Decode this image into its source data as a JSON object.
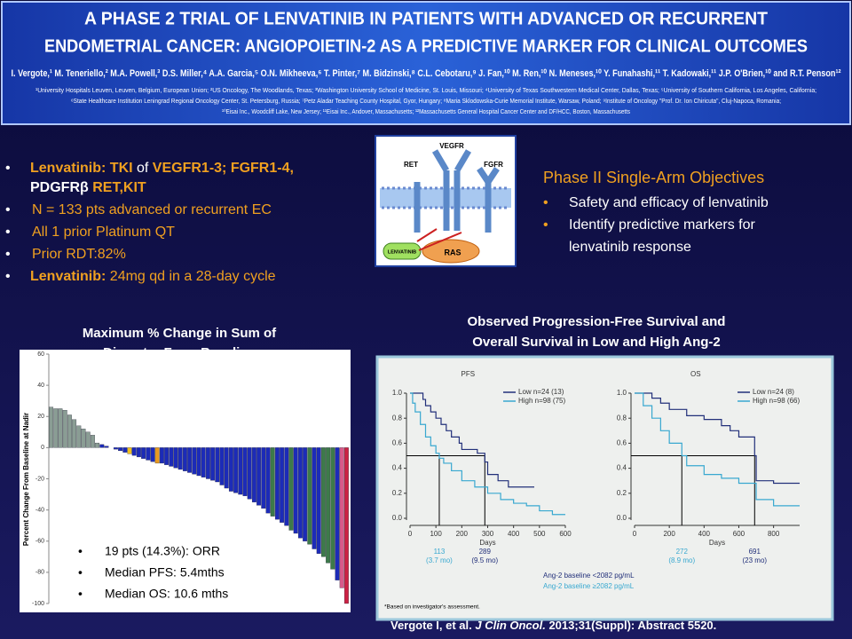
{
  "header": {
    "title": [
      "A PHASE 2 TRIAL OF LENVATINIB IN PATIENTS WITH ADVANCED OR RECURRENT",
      "ENDOMETRIAL CANCER: ANGIOPOIETIN-2 AS A PREDICTIVE MARKER FOR CLINICAL OUTCOMES"
    ],
    "authors": "I. Vergote,¹ M. Teneriello,² M.A. Powell,³ D.S. Miller,⁴ A.A. Garcia,⁵ O.N. Mikheeva,⁶ T. Pinter,⁷ M. Bidzinski,⁸ C.L. Cebotaru,⁹ J. Fan,¹⁰ M. Ren,¹⁰ N. Meneses,¹⁰ Y. Funahashi,¹¹ T. Kadowaki,¹¹ J.P. O'Brien,¹⁰ and R.T. Penson¹²",
    "affiliations": [
      "¹University Hospitals Leuven, Leuven, Belgium, European Union; ²US Oncology, The Woodlands, Texas; ³Washington University School of Medicine, St. Louis, Missouri; ⁴University of Texas Southwestern Medical Center, Dallas, Texas; ⁵University of Southern California, Los Angeles, California;",
      "⁶State Healthcare Institution Leningrad Regional Oncology Center, St. Petersburg, Russia; ⁷Petz Aladar Teaching County Hospital, Gyor, Hungary; ⁸Maria Sklodowska-Curie Memorial Institute, Warsaw, Poland; ⁹Institute of Oncology \"Prof. Dr. Ion Chiricuta\", Cluj-Napoca, Romania;",
      "¹⁰Eisai Inc., Woodcliff Lake, New Jersey; ¹¹Eisai Inc., Andover, Massachusetts; ¹²Massachusetts General Hospital Cancer Center and DF/HCC, Boston, Massachusetts"
    ]
  },
  "bullets": [
    [
      [
        {
          "text": "Lenvatinib:",
          "color": "#f0a020",
          "bold": true
        },
        {
          "text": " TKI",
          "color": "#f0a020",
          "bold": true
        },
        {
          "text": " of ",
          "color": "#ffffff",
          "bold": false
        },
        {
          "text": "VEGFR1-3; FGFR1-4,",
          "color": "#f0a020",
          "bold": true
        }
      ],
      [
        {
          "text": "PDGFRβ",
          "color": "#ffffff",
          "bold": true
        },
        {
          "text": " RET,KIT",
          "color": "#f0a020",
          "bold": true
        }
      ]
    ],
    [
      [
        {
          "text": "N = 133 pts advanced or recurrent EC",
          "color": "#f0a020",
          "bold": false
        }
      ]
    ],
    [
      [
        {
          "text": "All 1 prior Platinum QT",
          "color": "#f0a020",
          "bold": false
        }
      ]
    ],
    [
      [
        {
          "text": "Prior RDT:82%",
          "color": "#f0a020",
          "bold": false
        }
      ]
    ],
    [
      [
        {
          "text": "Lenvatinib:",
          "color": "#f0a020",
          "bold": true
        },
        {
          "text": " 24mg qd in a 28-day cycle",
          "color": "#f0a020",
          "bold": false
        }
      ]
    ]
  ],
  "diagram": {
    "labels": [
      "RET",
      "VEGFR",
      "FGFR",
      "LENVATINIB",
      "RAS"
    ]
  },
  "objectives": {
    "title": "Phase II Single-Arm Objectives",
    "items": [
      "Safety and efficacy of lenvatinib",
      "Identify predictive markers for",
      "lenvatinib response"
    ]
  },
  "chart_data": [
    {
      "type": "bar",
      "title": [
        "Maximum % Change in Sum of",
        "Diameter From Baseline"
      ],
      "y_label": "Percent Change From Baseline at Nadir",
      "ylim": [
        -100,
        60
      ],
      "yticks": [
        60,
        40,
        20,
        0,
        -20,
        -40,
        -60,
        -80,
        -100
      ],
      "values": [
        26,
        25,
        25,
        24,
        21,
        18,
        14,
        12,
        10,
        8,
        3,
        2,
        1,
        0,
        -1,
        -2,
        -3,
        -4,
        -5,
        -6,
        -7,
        -8,
        -9,
        -10,
        -10,
        -11,
        -12,
        -13,
        -14,
        -15,
        -16,
        -17,
        -18,
        -19,
        -20,
        -21,
        -22,
        -24,
        -26,
        -28,
        -29,
        -30,
        -31,
        -33,
        -35,
        -37,
        -39,
        -42,
        -44,
        -46,
        -48,
        -50,
        -53,
        -55,
        -58,
        -60,
        -62,
        -65,
        -68,
        -70,
        -74,
        -78,
        -85,
        -90,
        -100
      ],
      "colors": [
        "#8a9d94",
        "#8a9d94",
        "#8a9d94",
        "#8a9d94",
        "#8a9d94",
        "#8a9d94",
        "#8a9d94",
        "#8a9d94",
        "#8a9d94",
        "#8a9d94",
        "#8a9d94",
        "#1c2bb8",
        "#1c2bb8",
        "#1c2bb8",
        "#1c2bb8",
        "#1c2bb8",
        "#1c2bb8",
        "#f0c020",
        "#1c2bb8",
        "#1c2bb8",
        "#1c2bb8",
        "#1c2bb8",
        "#1c2bb8",
        "#e89a20",
        "#1c2bb8",
        "#1c2bb8",
        "#1c2bb8",
        "#1c2bb8",
        "#1c2bb8",
        "#1c2bb8",
        "#1c2bb8",
        "#1c2bb8",
        "#1c2bb8",
        "#1c2bb8",
        "#1c2bb8",
        "#1c2bb8",
        "#1c2bb8",
        "#1c2bb8",
        "#1c2bb8",
        "#1c2bb8",
        "#1c2bb8",
        "#1c2bb8",
        "#1c2bb8",
        "#1c2bb8",
        "#1c2bb8",
        "#1c2bb8",
        "#1c2bb8",
        "#1c2bb8",
        "#3d7a4a",
        "#1c2bb8",
        "#1c2bb8",
        "#1c2bb8",
        "#3d7a4a",
        "#1c2bb8",
        "#1c2bb8",
        "#1c2bb8",
        "#3d7a4a",
        "#1c2bb8",
        "#1c2bb8",
        "#3d7a4a",
        "#3d7a4a",
        "#3d7a4a",
        "#1c2bb8",
        "#d85a8a",
        "#cc2244"
      ],
      "annotations": [
        "19 pts (14.3%): ORR",
        "Median PFS: 5.4mths",
        "Median OS: 10.6 mths"
      ]
    },
    {
      "type": "step",
      "title": [
        "Observed Progression-Free Survival and",
        "Overall Survival in Low and High Ang-2"
      ],
      "panels": [
        {
          "title": "PFS",
          "x_label": "Days",
          "xlim": [
            0,
            600
          ],
          "xticks": [
            0,
            100,
            200,
            300,
            400,
            500,
            600
          ],
          "ylim": [
            0,
            1
          ],
          "yticks": [
            {
              "value": 0,
              "label": "0.0"
            },
            {
              "value": 0.2,
              "label": "0.2"
            },
            {
              "value": 0.4,
              "label": "0.4"
            },
            {
              "value": 0.6,
              "label": "0.6"
            },
            {
              "value": 0.8,
              "label": "0.8"
            },
            {
              "value": 1,
              "label": "1.0"
            }
          ],
          "legend": "upper right",
          "series": [
            {
              "name": "Low n=24 (13)",
              "color": "#22307a",
              "x": [
                0,
                50,
                60,
                80,
                100,
                120,
                140,
                160,
                190,
                200,
                260,
                289,
                300,
                340,
                380,
                400,
                480
              ],
              "values": [
                1,
                0.95,
                0.9,
                0.85,
                0.8,
                0.75,
                0.7,
                0.65,
                0.6,
                0.55,
                0.52,
                0.45,
                0.35,
                0.3,
                0.25,
                0.25,
                0.25
              ]
            },
            {
              "name": "High n=98 (75)",
              "color": "#38a8d0",
              "x": [
                0,
                10,
                20,
                40,
                60,
                80,
                100,
                113,
                130,
                160,
                200,
                250,
                300,
                350,
                400,
                450,
                500,
                550,
                600
              ],
              "values": [
                1,
                0.92,
                0.85,
                0.75,
                0.65,
                0.58,
                0.52,
                0.48,
                0.44,
                0.38,
                0.3,
                0.25,
                0.2,
                0.15,
                0.12,
                0.1,
                0.06,
                0.03,
                0.03
              ]
            }
          ],
          "medians": [
            {
              "days": 113,
              "months": "(3.7 mo)",
              "color": "#38a8d0"
            },
            {
              "days": 289,
              "months": "(9.5 mo)",
              "color": "#22307a"
            }
          ]
        },
        {
          "title": "OS",
          "x_label": "Days",
          "xlim": [
            0,
            950
          ],
          "xticks": [
            0,
            200,
            400,
            600,
            800
          ],
          "ylim": [
            0,
            1
          ],
          "yticks": [
            {
              "value": 0,
              "label": "0.0"
            },
            {
              "value": 0.2,
              "label": "0.2"
            },
            {
              "value": 0.4,
              "label": "0.4"
            },
            {
              "value": 0.6,
              "label": "0.6"
            },
            {
              "value": 0.8,
              "label": "0.8"
            },
            {
              "value": 1,
              "label": "1.0"
            }
          ],
          "legend": "upper right",
          "series": [
            {
              "name": "Low n=24 (8)",
              "color": "#22307a",
              "x": [
                0,
                100,
                150,
                200,
                300,
                400,
                500,
                550,
                600,
                691,
                700,
                800,
                950
              ],
              "values": [
                1,
                0.96,
                0.92,
                0.87,
                0.82,
                0.79,
                0.74,
                0.7,
                0.65,
                0.5,
                0.3,
                0.28,
                0.28
              ]
            },
            {
              "name": "High n=98 (66)",
              "color": "#38a8d0",
              "x": [
                0,
                50,
                100,
                150,
                200,
                272,
                300,
                400,
                500,
                600,
                700,
                800,
                950
              ],
              "values": [
                1,
                0.9,
                0.8,
                0.7,
                0.6,
                0.5,
                0.42,
                0.35,
                0.32,
                0.28,
                0.15,
                0.1,
                0.1
              ]
            }
          ],
          "medians": [
            {
              "days": 272,
              "months": "(8.9 mo)",
              "color": "#38a8d0"
            },
            {
              "days": 691,
              "months": "(23 mo)",
              "color": "#22307a"
            }
          ]
        }
      ],
      "group_legend": [
        {
          "name": "Ang-2 baseline <2082 pg/mL",
          "color": "#22307a"
        },
        {
          "name": "Ang-2 baseline ≥2082 pg/mL",
          "color": "#38a8d0"
        }
      ],
      "footnote": "*Based on investigator's assessment."
    }
  ],
  "citation": [
    {
      "text": "Vergote I, et al. ",
      "italic": false
    },
    {
      "text": "J Clin Oncol.",
      "italic": true
    },
    {
      "text": " 2013;31(Suppl): Abstract 5520.",
      "italic": false
    }
  ]
}
